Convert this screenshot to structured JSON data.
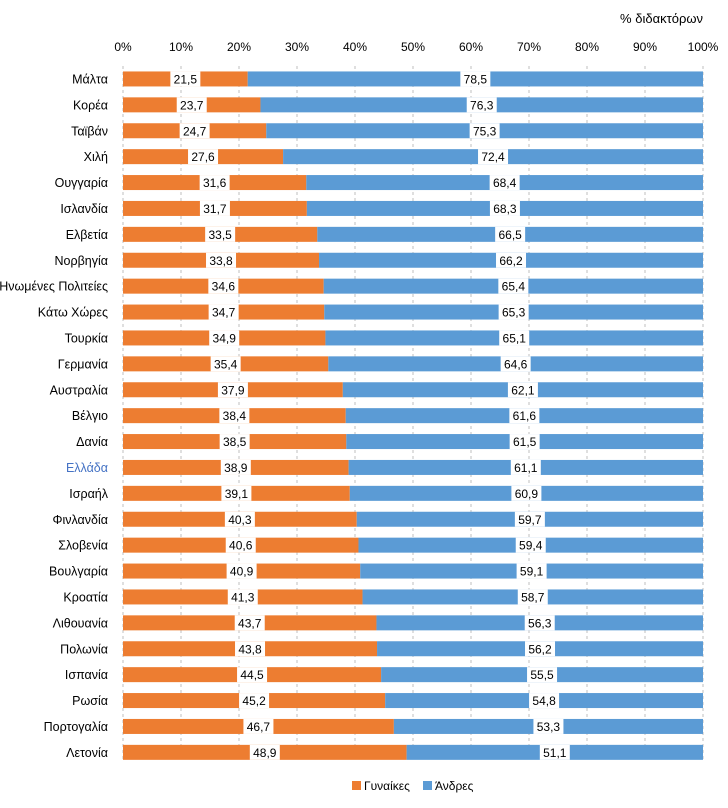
{
  "chart_data": {
    "type": "bar",
    "orientation": "horizontal",
    "stacked": "percent",
    "xlabel": "% διδακτόρων",
    "xlim": [
      0,
      100
    ],
    "x_ticks": [
      "0%",
      "10%",
      "20%",
      "30%",
      "40%",
      "50%",
      "60%",
      "70%",
      "80%",
      "90%",
      "100%"
    ],
    "grid": "vertical dashed",
    "legend_position": "bottom",
    "highlight_category": "Ελλάδα",
    "colors": {
      "women": "#ED7D31",
      "men": "#5B9BD5",
      "highlight_label": "#4472C4",
      "label_text": "#000000",
      "grid": "#bfbfbf"
    },
    "categories": [
      "Μάλτα",
      "Κορέα",
      "Ταϊβάν",
      "Χιλή",
      "Ουγγαρία",
      "Ισλανδία",
      "Ελβετία",
      "Νορβηγία",
      "Ηνωμένες Πολιτείες",
      "Κάτω Χώρες",
      "Τουρκία",
      "Γερμανία",
      "Αυστραλία",
      "Βέλγιο",
      "Δανία",
      "Ελλάδα",
      "Ισραήλ",
      "Φινλανδία",
      "Σλοβενία",
      "Βουλγαρία",
      "Κροατία",
      "Λιθουανία",
      "Πολωνία",
      "Ισπανία",
      "Ρωσία",
      "Πορτογαλία",
      "Λετονία"
    ],
    "series": [
      {
        "name": "Γυναίκες",
        "values": [
          21.5,
          23.7,
          24.7,
          27.6,
          31.6,
          31.7,
          33.5,
          33.8,
          34.6,
          34.7,
          34.9,
          35.4,
          37.9,
          38.4,
          38.5,
          38.9,
          39.1,
          40.3,
          40.6,
          40.9,
          41.3,
          43.7,
          43.8,
          44.5,
          45.2,
          46.7,
          48.9
        ],
        "labels": [
          "21,5",
          "23,7",
          "24,7",
          "27,6",
          "31,6",
          "31,7",
          "33,5",
          "33,8",
          "34,6",
          "34,7",
          "34,9",
          "35,4",
          "37,9",
          "38,4",
          "38,5",
          "38,9",
          "39,1",
          "40,3",
          "40,6",
          "40,9",
          "41,3",
          "43,7",
          "43,8",
          "44,5",
          "45,2",
          "46,7",
          "48,9"
        ]
      },
      {
        "name": "Άνδρες",
        "values": [
          78.5,
          76.3,
          75.3,
          72.4,
          68.4,
          68.3,
          66.5,
          66.2,
          65.4,
          65.3,
          65.1,
          64.6,
          62.1,
          61.6,
          61.5,
          61.1,
          60.9,
          59.7,
          59.4,
          59.1,
          58.7,
          56.3,
          56.2,
          55.5,
          54.8,
          53.3,
          51.1
        ],
        "labels": [
          "78,5",
          "76,3",
          "75,3",
          "72,4",
          "68,4",
          "68,3",
          "66,5",
          "66,2",
          "65,4",
          "65,3",
          "65,1",
          "64,6",
          "62,1",
          "61,6",
          "61,5",
          "61,1",
          "60,9",
          "59,7",
          "59,4",
          "59,1",
          "58,7",
          "56,3",
          "56,2",
          "55,5",
          "54,8",
          "53,3",
          "51,1"
        ]
      }
    ]
  }
}
